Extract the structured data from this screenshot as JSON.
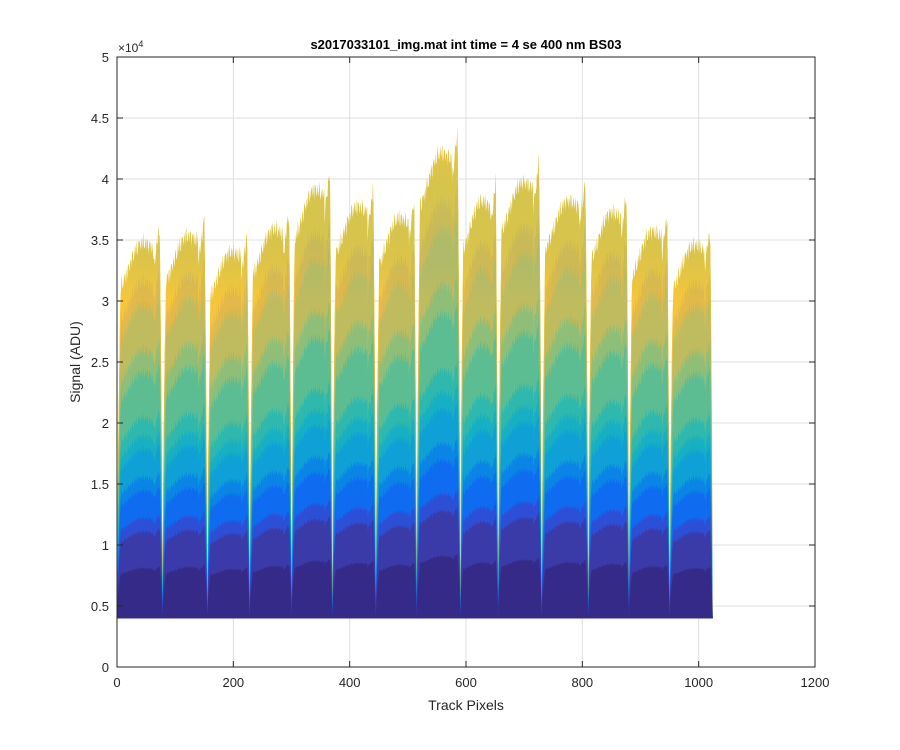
{
  "chart_data": {
    "type": "area",
    "title": "s2017033101_img.mat int time = 4 se  400 nm BS03",
    "xlabel": "Track Pixels",
    "ylabel": "Signal (ADU)",
    "y_exponent_label": "×10",
    "y_exponent_power": "4",
    "xlim": [
      0,
      1200
    ],
    "ylim": [
      0,
      5
    ],
    "y_scale_factor": 10000,
    "x_ticks": [
      0,
      200,
      400,
      600,
      800,
      1000,
      1200
    ],
    "y_ticks": [
      0,
      0.5,
      1,
      1.5,
      2,
      2.5,
      3,
      3.5,
      4,
      4.5,
      5
    ],
    "x_tick_labels": [
      "0",
      "200",
      "400",
      "600",
      "800",
      "1000",
      "1200"
    ],
    "y_tick_labels": [
      "0",
      "0.5",
      "1",
      "1.5",
      "2",
      "2.5",
      "3",
      "3.5",
      "4",
      "4.5",
      "5"
    ],
    "grid": true,
    "baseline": 0.4,
    "x_range": [
      0,
      1024
    ],
    "dip_centers": [
      78,
      155,
      228,
      300,
      370,
      445,
      515,
      590,
      655,
      730,
      810,
      880,
      950
    ],
    "lobes": [
      {
        "x_start": 0,
        "x_end": 78,
        "peak": 3.78
      },
      {
        "x_start": 78,
        "x_end": 155,
        "peak": 3.84
      },
      {
        "x_start": 155,
        "x_end": 228,
        "peak": 3.7
      },
      {
        "x_start": 228,
        "x_end": 300,
        "peak": 3.9
      },
      {
        "x_start": 300,
        "x_end": 370,
        "peak": 4.25
      },
      {
        "x_start": 370,
        "x_end": 445,
        "peak": 4.1
      },
      {
        "x_start": 445,
        "x_end": 515,
        "peak": 4.0
      },
      {
        "x_start": 515,
        "x_end": 590,
        "peak": 4.58
      },
      {
        "x_start": 590,
        "x_end": 655,
        "peak": 4.15
      },
      {
        "x_start": 655,
        "x_end": 730,
        "peak": 4.32
      },
      {
        "x_start": 730,
        "x_end": 810,
        "peak": 4.15
      },
      {
        "x_start": 810,
        "x_end": 880,
        "peak": 4.05
      },
      {
        "x_start": 880,
        "x_end": 950,
        "peak": 3.88
      },
      {
        "x_start": 950,
        "x_end": 1024,
        "peak": 3.76
      }
    ],
    "series_levels": [
      0.55,
      0.75,
      0.95,
      1.1,
      1.25,
      1.4,
      1.55,
      1.7,
      1.85,
      2.0,
      2.2,
      2.45,
      2.7,
      2.95,
      3.2,
      3.45,
      3.7,
      3.95,
      4.2,
      4.45
    ],
    "colors": {
      "gradient": [
        "#352a87",
        "#3a3aa8",
        "#2d4fd6",
        "#0f6cf0",
        "#0a85e6",
        "#0fa0d6",
        "#16afc4",
        "#2fb8ad",
        "#5dbd92",
        "#8fbe78",
        "#bfbb5f",
        "#e2b94a",
        "#f6c63a",
        "#f9d939"
      ]
    }
  }
}
